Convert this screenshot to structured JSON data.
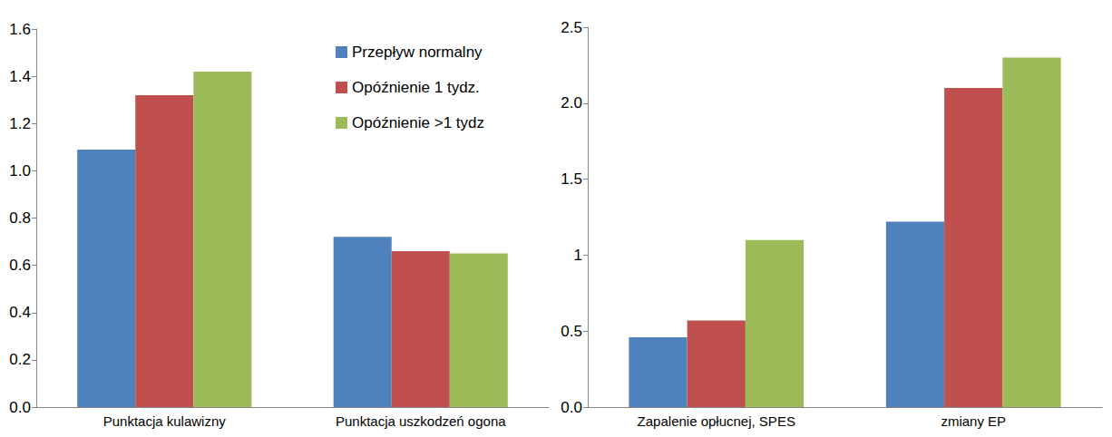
{
  "chart_data": [
    {
      "type": "bar",
      "categories": [
        "Punktacja kulawizny",
        "Punktacja uszkodzeń ogona"
      ],
      "series": [
        {
          "name": "Przepływ normalny",
          "color": "#4f81bd",
          "values": [
            1.09,
            0.72
          ]
        },
        {
          "name": "Opóźnienie 1 tydz.",
          "color": "#c0504d",
          "values": [
            1.32,
            0.66
          ]
        },
        {
          "name": "Opóźnienie >1 tydz",
          "color": "#9bbb59",
          "values": [
            1.42,
            0.65
          ]
        }
      ],
      "ylim": [
        0,
        1.6
      ],
      "yticks": [
        {
          "value": 0,
          "label": "0.0"
        },
        0.2,
        0.4,
        0.6,
        0.8,
        {
          "value": 1,
          "label": "1.0"
        },
        1.2,
        1.4,
        1.6
      ],
      "grid": false,
      "legend": "top"
    },
    {
      "type": "bar",
      "categories": [
        "Zapalenie opłucnej, SPES",
        "zmiany EP"
      ],
      "series": [
        {
          "name": "Przepływ normalny",
          "color": "#4f81bd",
          "values": [
            0.46,
            1.22
          ]
        },
        {
          "name": "Opóźnienie 1 tydz.",
          "color": "#c0504d",
          "values": [
            0.57,
            2.1
          ]
        },
        {
          "name": "Opóźnienie >1 tydz",
          "color": "#9bbb59",
          "values": [
            1.1,
            2.3
          ]
        }
      ],
      "ylim": [
        0,
        2.5
      ],
      "yticks": [
        {
          "value": 0,
          "label": "0.0"
        },
        0.5,
        1,
        1.5,
        {
          "value": 2,
          "label": "2.0"
        },
        2.5
      ],
      "grid": false
    }
  ]
}
